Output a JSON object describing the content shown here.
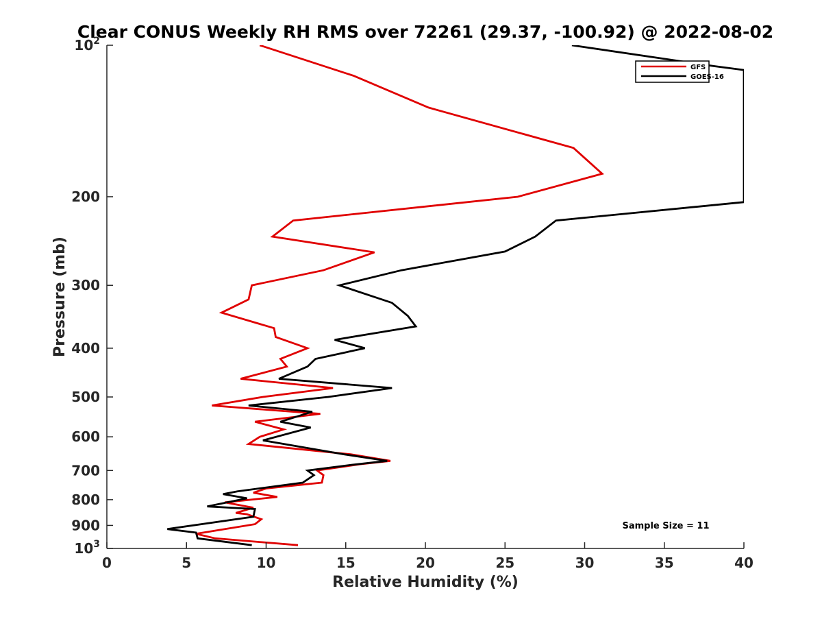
{
  "chart_data": {
    "type": "line",
    "title": "Clear CONUS Weekly RH RMS over 72261 (29.37, -100.92) @ 2022-08-02",
    "xlabel": "Relative Humidity (%)",
    "ylabel": "Pressure (mb)",
    "xlim": [
      0,
      40
    ],
    "ylim": [
      100,
      1000
    ],
    "y_scale": "log",
    "y_reversed": true,
    "grid": false,
    "legend_position": "top-right",
    "x_ticks": [
      0,
      5,
      10,
      15,
      20,
      25,
      30,
      35,
      40
    ],
    "y_ticks": [
      {
        "value": 100,
        "base": "10",
        "exp": "2"
      },
      {
        "value": 200,
        "label": "200"
      },
      {
        "value": 300,
        "label": "300"
      },
      {
        "value": 400,
        "label": "400"
      },
      {
        "value": 500,
        "label": "500"
      },
      {
        "value": 600,
        "label": "600"
      },
      {
        "value": 700,
        "label": "700"
      },
      {
        "value": 800,
        "label": "800"
      },
      {
        "value": 900,
        "label": "900"
      },
      {
        "value": 1000,
        "base": "10",
        "exp": "3"
      }
    ],
    "annotation": "Sample Size = 11",
    "series": [
      {
        "name": "GFS",
        "color": "#e00000",
        "points": [
          [
            9.6,
            100
          ],
          [
            15.5,
            115
          ],
          [
            20.2,
            133
          ],
          [
            29.3,
            160
          ],
          [
            31.1,
            180
          ],
          [
            25.8,
            200
          ],
          [
            11.7,
            223
          ],
          [
            10.4,
            240
          ],
          [
            16.8,
            258
          ],
          [
            13.6,
            280
          ],
          [
            9.1,
            300
          ],
          [
            8.9,
            320
          ],
          [
            7.2,
            340
          ],
          [
            10.5,
            365
          ],
          [
            10.6,
            380
          ],
          [
            12.6,
            400
          ],
          [
            10.9,
            420
          ],
          [
            11.3,
            435
          ],
          [
            8.4,
            460
          ],
          [
            14.2,
            480
          ],
          [
            9.8,
            500
          ],
          [
            6.6,
            520
          ],
          [
            13.4,
            540
          ],
          [
            9.3,
            560
          ],
          [
            11.1,
            580
          ],
          [
            9.6,
            600
          ],
          [
            8.9,
            620
          ],
          [
            15.3,
            650
          ],
          [
            17.8,
            670
          ],
          [
            15.9,
            680
          ],
          [
            13.2,
            700
          ],
          [
            13.6,
            715
          ],
          [
            13.5,
            740
          ],
          [
            10.0,
            760
          ],
          [
            9.2,
            775
          ],
          [
            10.7,
            790
          ],
          [
            7.4,
            810
          ],
          [
            9.2,
            830
          ],
          [
            8.1,
            850
          ],
          [
            8.8,
            855
          ],
          [
            9.7,
            875
          ],
          [
            9.3,
            895
          ],
          [
            5.6,
            935
          ],
          [
            6.8,
            955
          ],
          [
            12.0,
            985
          ]
        ]
      },
      {
        "name": "GOES-16",
        "color": "#000000",
        "points": [
          [
            29.2,
            100
          ],
          [
            38.1,
            110
          ],
          [
            40.0,
            112
          ],
          [
            40.0,
            205
          ],
          [
            28.2,
            223
          ],
          [
            26.9,
            240
          ],
          [
            25.0,
            257
          ],
          [
            18.5,
            280
          ],
          [
            14.6,
            300
          ],
          [
            17.9,
            325
          ],
          [
            18.9,
            345
          ],
          [
            19.4,
            362
          ],
          [
            14.3,
            385
          ],
          [
            16.2,
            400
          ],
          [
            13.1,
            420
          ],
          [
            12.6,
            435
          ],
          [
            10.8,
            460
          ],
          [
            17.9,
            480
          ],
          [
            13.9,
            500
          ],
          [
            8.9,
            520
          ],
          [
            12.9,
            535
          ],
          [
            10.9,
            560
          ],
          [
            12.8,
            575
          ],
          [
            9.8,
            610
          ],
          [
            14.9,
            650
          ],
          [
            17.6,
            670
          ],
          [
            15.4,
            682
          ],
          [
            12.6,
            700
          ],
          [
            13.0,
            715
          ],
          [
            12.3,
            740
          ],
          [
            8.2,
            770
          ],
          [
            7.3,
            780
          ],
          [
            8.8,
            795
          ],
          [
            6.3,
            825
          ],
          [
            9.3,
            835
          ],
          [
            9.2,
            865
          ],
          [
            3.8,
            915
          ],
          [
            5.6,
            930
          ],
          [
            5.7,
            955
          ],
          [
            9.1,
            985
          ]
        ]
      }
    ]
  }
}
